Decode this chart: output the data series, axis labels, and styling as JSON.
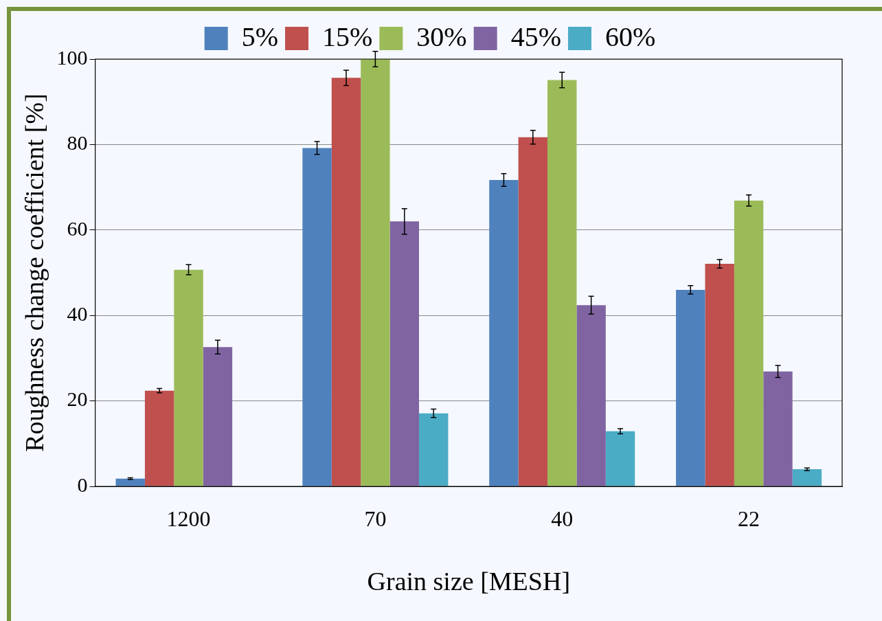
{
  "chart_data": {
    "type": "bar",
    "xlabel": "Grain size [MESH]",
    "ylabel": "Roughness change coefficient [%]",
    "categories": [
      "1200",
      "70",
      "40",
      "22"
    ],
    "series": [
      {
        "name": "5%",
        "color": "#4f81bd",
        "values": [
          1.8,
          79.2,
          71.7,
          46.0
        ],
        "errors": [
          0.2,
          1.5,
          1.5,
          1.0
        ]
      },
      {
        "name": "15%",
        "color": "#c0504d",
        "values": [
          22.4,
          95.6,
          81.7,
          52.1
        ],
        "errors": [
          0.5,
          1.8,
          1.6,
          1.0
        ]
      },
      {
        "name": "30%",
        "color": "#9bbb59",
        "values": [
          50.7,
          100,
          95.1,
          66.9
        ],
        "errors": [
          1.2,
          1.8,
          1.8,
          1.3
        ]
      },
      {
        "name": "45%",
        "color": "#8064a2",
        "values": [
          32.6,
          62.0,
          42.4,
          26.9
        ],
        "errors": [
          1.6,
          3.0,
          2.1,
          1.4
        ]
      },
      {
        "name": "60%",
        "color": "#4bacc6",
        "values": [
          0.1,
          17.1,
          12.9,
          4.0
        ],
        "errors": [
          null,
          1.0,
          0.6,
          0.3
        ]
      }
    ],
    "ylim": [
      0,
      100
    ],
    "yticks": [
      0,
      20,
      40,
      60,
      80,
      100
    ],
    "grid": "y",
    "legend": "top"
  }
}
